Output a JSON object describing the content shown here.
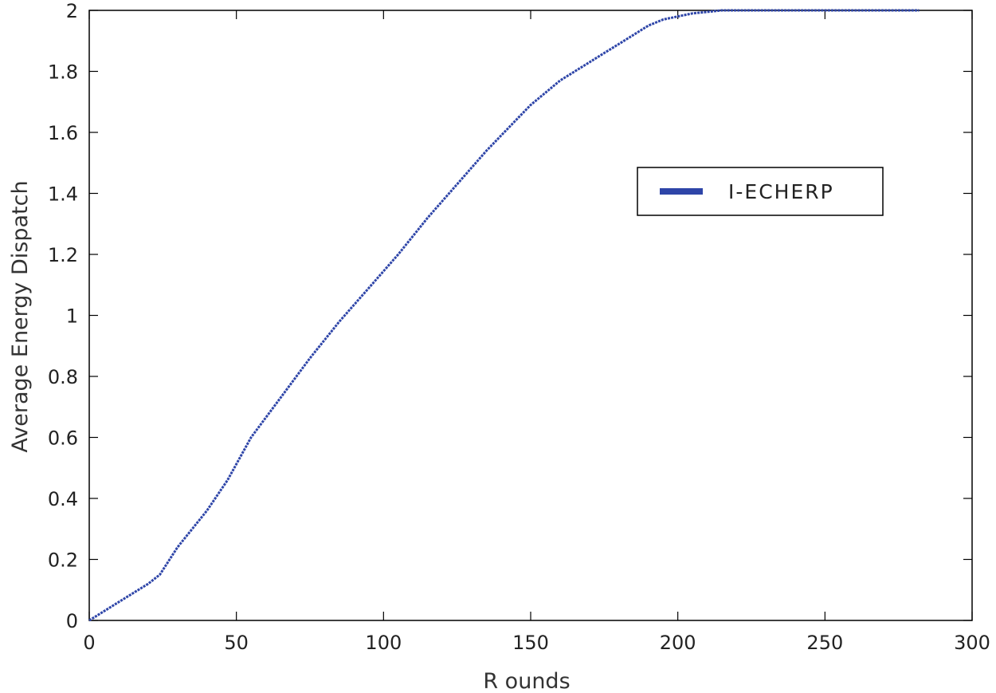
{
  "chart_data": {
    "type": "line",
    "title": "",
    "xlabel": "R ounds",
    "ylabel": "Average Energy Dispatch",
    "xlim": [
      0,
      300
    ],
    "ylim": [
      0,
      2
    ],
    "xticks": [
      0,
      50,
      100,
      150,
      200,
      250,
      300
    ],
    "yticks": [
      0,
      0.2,
      0.4,
      0.6,
      0.8,
      1,
      1.2,
      1.4,
      1.6,
      1.8,
      2
    ],
    "xtick_labels": [
      "0",
      "50",
      "100",
      "150",
      "200",
      "250",
      "300"
    ],
    "ytick_labels": [
      "0",
      "0.2",
      "0.4",
      "0.6",
      "0.8",
      "1",
      "1.2",
      "1.4",
      "1.6",
      "1.8",
      "2"
    ],
    "grid": false,
    "legend_position": "upper-right",
    "series": [
      {
        "name": "I-ECHERP",
        "color": "#2e45a8",
        "x": [
          0,
          10,
          20,
          24,
          30,
          40,
          47,
          55,
          65,
          75,
          85,
          95,
          105,
          115,
          125,
          135,
          145,
          150,
          155,
          160,
          170,
          175,
          180,
          185,
          190,
          195,
          200,
          205,
          210,
          215,
          250,
          282
        ],
        "y": [
          0,
          0.06,
          0.12,
          0.15,
          0.24,
          0.36,
          0.46,
          0.6,
          0.73,
          0.86,
          0.98,
          1.09,
          1.2,
          1.32,
          1.43,
          1.54,
          1.64,
          1.69,
          1.73,
          1.77,
          1.83,
          1.86,
          1.89,
          1.92,
          1.95,
          1.97,
          1.98,
          1.99,
          1.995,
          2.0,
          2.0,
          2.0
        ]
      }
    ]
  }
}
